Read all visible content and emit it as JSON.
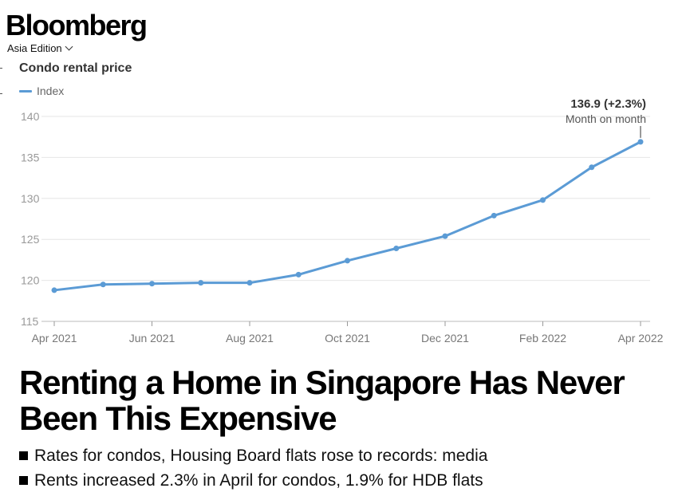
{
  "header": {
    "brand": "Bloomberg",
    "edition": "Asia Edition"
  },
  "chart_data": {
    "type": "line",
    "title": "Condo rental price",
    "legend_position": "top-left",
    "grid": true,
    "series": [
      {
        "name": "Index",
        "color": "#5b9bd5",
        "x": [
          "Apr 2021",
          "May 2021",
          "Jun 2021",
          "Jul 2021",
          "Aug 2021",
          "Sep 2021",
          "Oct 2021",
          "Nov 2021",
          "Dec 2021",
          "Jan 2022",
          "Feb 2022",
          "Mar 2022",
          "Apr 2022"
        ],
        "values": [
          118.8,
          119.5,
          119.6,
          119.7,
          119.7,
          120.7,
          122.4,
          123.9,
          125.4,
          127.9,
          129.8,
          133.8,
          136.9
        ]
      }
    ],
    "x_tick_labels": [
      "Apr 2021",
      "Jun 2021",
      "Aug 2021",
      "Oct 2021",
      "Dec 2021",
      "Feb 2022",
      "Apr 2022"
    ],
    "y_ticks": [
      115,
      120,
      125,
      130,
      135,
      140
    ],
    "ylim": [
      115,
      140
    ],
    "annotation": {
      "value_text": "136.9 (+2.3%)",
      "note": "Month on month"
    }
  },
  "article": {
    "headline": "Renting a Home in Singapore Has Never Been This Expensive",
    "bullets": [
      "Rates for condos, Housing Board flats rose to records: media",
      "Rents increased 2.3% in April for condos, 1.9% for HDB flats"
    ]
  }
}
